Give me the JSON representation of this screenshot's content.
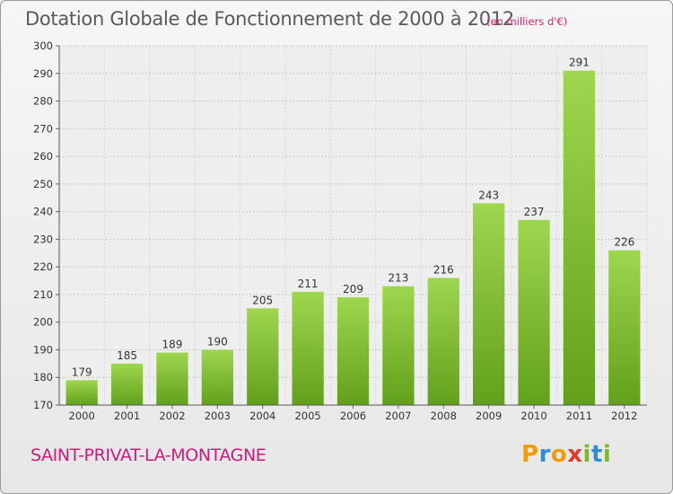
{
  "chart_data": {
    "type": "bar",
    "title": "Dotation Globale de Fonctionnement de 2000 à 2012",
    "subtitle": "(en milliers d'€)",
    "categories": [
      "2000",
      "2001",
      "2002",
      "2003",
      "2004",
      "2005",
      "2006",
      "2007",
      "2008",
      "2009",
      "2010",
      "2011",
      "2012"
    ],
    "values": [
      179,
      185,
      189,
      190,
      205,
      211,
      209,
      213,
      216,
      243,
      237,
      291,
      226
    ],
    "ylim": [
      170,
      300
    ],
    "yticks": [
      170,
      180,
      190,
      200,
      210,
      220,
      230,
      240,
      250,
      260,
      270,
      280,
      290,
      300
    ],
    "grid": true,
    "bar_color": "#7cba2c"
  },
  "commune_name": "SAINT-PRIVAT-LA-MONTAGNE",
  "logo": {
    "letters": [
      "P",
      "r",
      "o",
      "x",
      "i",
      "t",
      "i"
    ],
    "colors": [
      "#f59c00",
      "#2f8fd6",
      "#f59c00",
      "#e33b2e",
      "#7cba2c",
      "#2f8fd6",
      "#7cba2c"
    ]
  }
}
